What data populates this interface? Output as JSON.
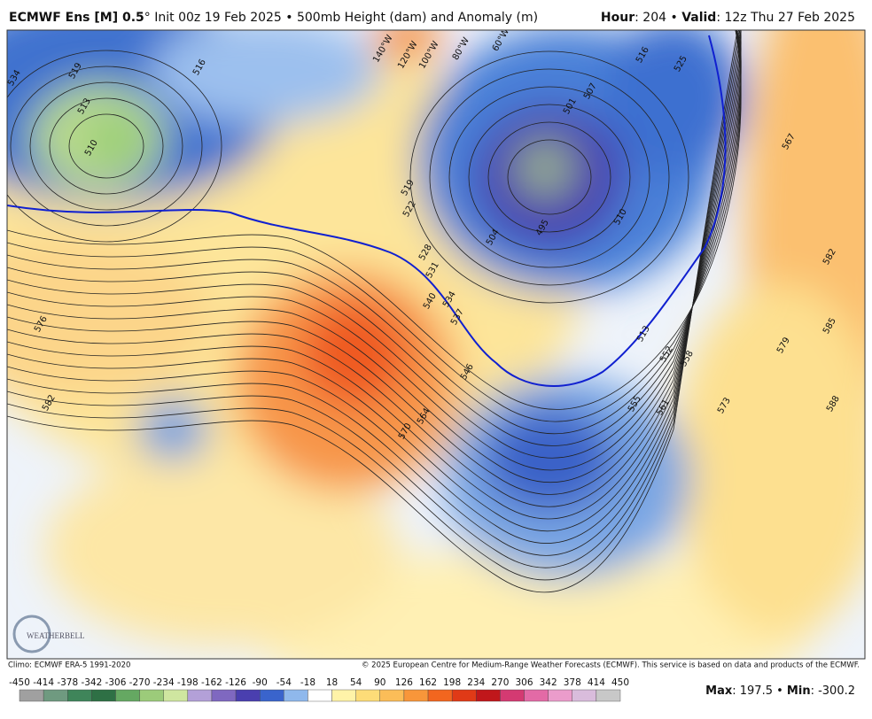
{
  "header": {
    "model": "ECMWF Ens [M] 0.5",
    "run": "° Init 00z 19 Feb 2025 • 500mb Height (dam) and Anomaly (m)",
    "hour_label": "Hour",
    "hour": ": 204 • ",
    "valid_label": "Valid",
    "valid": ": 12z Thu 27 Feb 2025"
  },
  "map": {
    "logo": "WEATHERBELL",
    "contour_labels": [
      "534",
      "519",
      "513",
      "510",
      "516",
      "507",
      "501",
      "495",
      "504",
      "510",
      "525",
      "516",
      "567",
      "582",
      "585",
      "588",
      "579",
      "573",
      "561",
      "558",
      "552",
      "555",
      "546",
      "564",
      "570",
      "576",
      "582",
      "519",
      "522",
      "528",
      "531",
      "534",
      "540",
      "537",
      "513",
      "140°W",
      "120°W",
      "100°W",
      "80°W",
      "60°W"
    ]
  },
  "footer": {
    "climo": "Climo: ECMWF ERA-5 1991-2020",
    "copyright": "© 2025 European Centre for Medium-Range Weather Forecasts (ECMWF). This service is based on data and products of the ECMWF.",
    "max_label": "Max",
    "max": ": 197.5 • ",
    "min_label": "Min",
    "min": ": -300.2"
  },
  "colorbar": {
    "ticks": [
      -450,
      -414,
      -378,
      -342,
      -306,
      -270,
      -234,
      -198,
      -162,
      -126,
      -90,
      -54,
      -18,
      18,
      54,
      90,
      126,
      162,
      198,
      234,
      270,
      306,
      342,
      378,
      414,
      450
    ],
    "colors": [
      "#a0a0a0",
      "#6f9a80",
      "#3f855a",
      "#2e7045",
      "#65a862",
      "#9ccb7a",
      "#cfe6a0",
      "#b3a0d8",
      "#7f68c0",
      "#4a3faf",
      "#3a64cc",
      "#8fb8ec",
      "#ffffff",
      "#fff3a8",
      "#fddc78",
      "#fbbd58",
      "#f8963a",
      "#f2661f",
      "#e03a17",
      "#c0171b",
      "#d43a72",
      "#e36aa6",
      "#eb9ccb",
      "#d9bcdc",
      "#c8c8c8"
    ]
  }
}
